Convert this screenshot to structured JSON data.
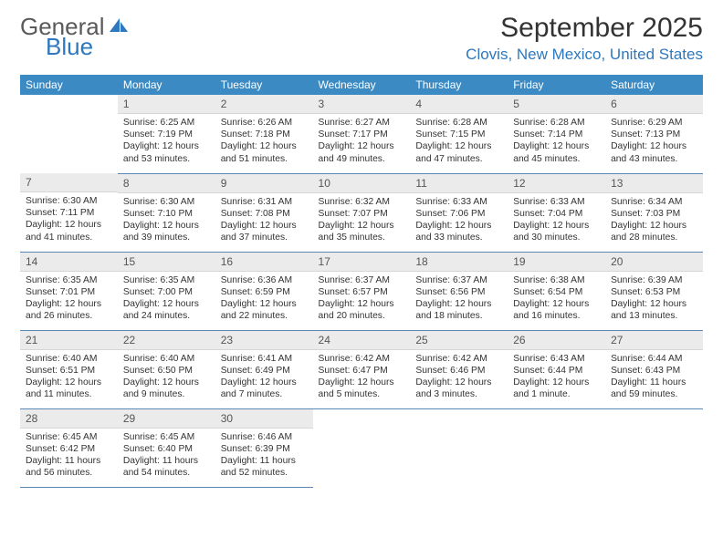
{
  "logo": {
    "word1": "General",
    "word2": "Blue"
  },
  "title": "September 2025",
  "location": "Clovis, New Mexico, United States",
  "header_bg": "#3b8ac4",
  "header_fg": "#ffffff",
  "daynum_bg": "#ebebeb",
  "rule_color": "#5b88b3",
  "accent_color": "#2d78be",
  "day_labels": [
    "Sunday",
    "Monday",
    "Tuesday",
    "Wednesday",
    "Thursday",
    "Friday",
    "Saturday"
  ],
  "weeks": [
    [
      null,
      {
        "n": "1",
        "sr": "6:25 AM",
        "ss": "7:19 PM",
        "dl": "12 hours and 53 minutes."
      },
      {
        "n": "2",
        "sr": "6:26 AM",
        "ss": "7:18 PM",
        "dl": "12 hours and 51 minutes."
      },
      {
        "n": "3",
        "sr": "6:27 AM",
        "ss": "7:17 PM",
        "dl": "12 hours and 49 minutes."
      },
      {
        "n": "4",
        "sr": "6:28 AM",
        "ss": "7:15 PM",
        "dl": "12 hours and 47 minutes."
      },
      {
        "n": "5",
        "sr": "6:28 AM",
        "ss": "7:14 PM",
        "dl": "12 hours and 45 minutes."
      },
      {
        "n": "6",
        "sr": "6:29 AM",
        "ss": "7:13 PM",
        "dl": "12 hours and 43 minutes."
      }
    ],
    [
      {
        "n": "7",
        "sr": "6:30 AM",
        "ss": "7:11 PM",
        "dl": "12 hours and 41 minutes."
      },
      {
        "n": "8",
        "sr": "6:30 AM",
        "ss": "7:10 PM",
        "dl": "12 hours and 39 minutes."
      },
      {
        "n": "9",
        "sr": "6:31 AM",
        "ss": "7:08 PM",
        "dl": "12 hours and 37 minutes."
      },
      {
        "n": "10",
        "sr": "6:32 AM",
        "ss": "7:07 PM",
        "dl": "12 hours and 35 minutes."
      },
      {
        "n": "11",
        "sr": "6:33 AM",
        "ss": "7:06 PM",
        "dl": "12 hours and 33 minutes."
      },
      {
        "n": "12",
        "sr": "6:33 AM",
        "ss": "7:04 PM",
        "dl": "12 hours and 30 minutes."
      },
      {
        "n": "13",
        "sr": "6:34 AM",
        "ss": "7:03 PM",
        "dl": "12 hours and 28 minutes."
      }
    ],
    [
      {
        "n": "14",
        "sr": "6:35 AM",
        "ss": "7:01 PM",
        "dl": "12 hours and 26 minutes."
      },
      {
        "n": "15",
        "sr": "6:35 AM",
        "ss": "7:00 PM",
        "dl": "12 hours and 24 minutes."
      },
      {
        "n": "16",
        "sr": "6:36 AM",
        "ss": "6:59 PM",
        "dl": "12 hours and 22 minutes."
      },
      {
        "n": "17",
        "sr": "6:37 AM",
        "ss": "6:57 PM",
        "dl": "12 hours and 20 minutes."
      },
      {
        "n": "18",
        "sr": "6:37 AM",
        "ss": "6:56 PM",
        "dl": "12 hours and 18 minutes."
      },
      {
        "n": "19",
        "sr": "6:38 AM",
        "ss": "6:54 PM",
        "dl": "12 hours and 16 minutes."
      },
      {
        "n": "20",
        "sr": "6:39 AM",
        "ss": "6:53 PM",
        "dl": "12 hours and 13 minutes."
      }
    ],
    [
      {
        "n": "21",
        "sr": "6:40 AM",
        "ss": "6:51 PM",
        "dl": "12 hours and 11 minutes."
      },
      {
        "n": "22",
        "sr": "6:40 AM",
        "ss": "6:50 PM",
        "dl": "12 hours and 9 minutes."
      },
      {
        "n": "23",
        "sr": "6:41 AM",
        "ss": "6:49 PM",
        "dl": "12 hours and 7 minutes."
      },
      {
        "n": "24",
        "sr": "6:42 AM",
        "ss": "6:47 PM",
        "dl": "12 hours and 5 minutes."
      },
      {
        "n": "25",
        "sr": "6:42 AM",
        "ss": "6:46 PM",
        "dl": "12 hours and 3 minutes."
      },
      {
        "n": "26",
        "sr": "6:43 AM",
        "ss": "6:44 PM",
        "dl": "12 hours and 1 minute."
      },
      {
        "n": "27",
        "sr": "6:44 AM",
        "ss": "6:43 PM",
        "dl": "11 hours and 59 minutes."
      }
    ],
    [
      {
        "n": "28",
        "sr": "6:45 AM",
        "ss": "6:42 PM",
        "dl": "11 hours and 56 minutes."
      },
      {
        "n": "29",
        "sr": "6:45 AM",
        "ss": "6:40 PM",
        "dl": "11 hours and 54 minutes."
      },
      {
        "n": "30",
        "sr": "6:46 AM",
        "ss": "6:39 PM",
        "dl": "11 hours and 52 minutes."
      },
      null,
      null,
      null,
      null
    ]
  ],
  "labels": {
    "sunrise": "Sunrise:",
    "sunset": "Sunset:",
    "daylight": "Daylight:"
  }
}
